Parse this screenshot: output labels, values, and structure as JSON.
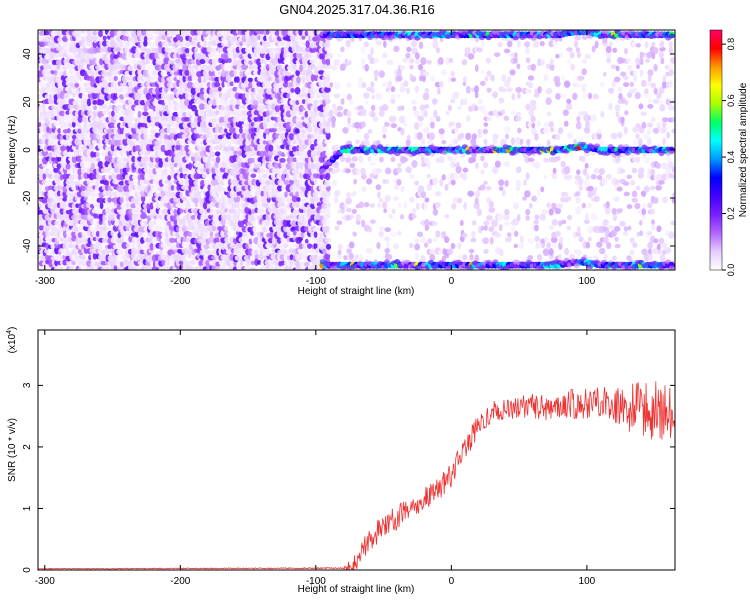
{
  "title": "GN04.2025.317.04.36.R16",
  "chart_data": [
    {
      "type": "heatmap",
      "xlabel": "Height of straight line (km)",
      "ylabel": "Frequency (Hz)",
      "xlim": [
        -305,
        165
      ],
      "ylim": [
        -50,
        50
      ],
      "xticks": [
        -300,
        -200,
        -100,
        0,
        100
      ],
      "yticks": [
        -40,
        -20,
        0,
        20,
        40
      ],
      "colorbar": {
        "label": "Normalized spectral amplitude",
        "range": [
          0,
          0.85
        ],
        "ticks": [
          0.0,
          0.2,
          0.4,
          0.6,
          0.8
        ],
        "colors": [
          "#ffffff",
          "#e6ccff",
          "#b266ff",
          "#7a1fff",
          "#4400ff",
          "#0000ff",
          "#0099ff",
          "#00ffff",
          "#00ff66",
          "#aaff00",
          "#ffff00",
          "#ff9900",
          "#ff0000",
          "#ff0066"
        ]
      },
      "signal_band": {
        "frequency_center": 0,
        "x_start": -95,
        "x_end": 165,
        "aliases": [
          -48,
          48
        ]
      }
    },
    {
      "type": "line",
      "xlabel": "Height of straight line (km)",
      "ylabel": "SNR (10 * v/v)",
      "y_multiplier": "(x10",
      "y_multiplier_exp": "4",
      "y_multiplier_close": ")",
      "xlim": [
        -305,
        165
      ],
      "ylim": [
        0,
        3.9
      ],
      "xticks": [
        -300,
        -200,
        -100,
        0,
        100
      ],
      "yticks": [
        0,
        1,
        2,
        3
      ],
      "color": "#ee3333",
      "trend_x": [
        -305,
        -80,
        -70,
        -65,
        -60,
        -50,
        -40,
        -30,
        -20,
        -10,
        0,
        10,
        20,
        30,
        40,
        50,
        60,
        70,
        80,
        90,
        100,
        110,
        120,
        130,
        140,
        150,
        165
      ],
      "trend_y": [
        0.02,
        0.03,
        0.1,
        0.35,
        0.5,
        0.7,
        0.85,
        1.0,
        1.15,
        1.3,
        1.55,
        1.95,
        2.35,
        2.55,
        2.6,
        2.65,
        2.65,
        2.65,
        2.7,
        2.7,
        2.7,
        2.75,
        2.7,
        2.65,
        2.65,
        2.55,
        2.55
      ],
      "noise_x": [
        -305,
        -80,
        -70,
        -50,
        -20,
        0,
        20,
        50,
        100,
        120,
        130,
        140,
        165
      ],
      "noise_y": [
        0.005,
        0.01,
        0.18,
        0.2,
        0.2,
        0.2,
        0.2,
        0.2,
        0.25,
        0.3,
        0.4,
        0.45,
        0.45
      ]
    }
  ]
}
